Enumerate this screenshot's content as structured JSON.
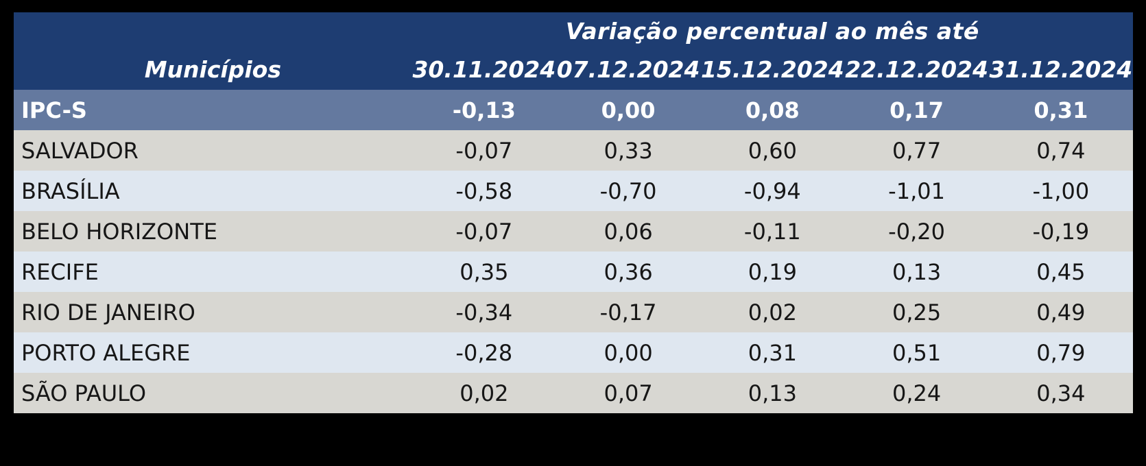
{
  "table": {
    "group_header": "Variação percentual ao mês até",
    "municipality_header": "Municípios",
    "date_columns": [
      "30.11.2024",
      "07.12.2024",
      "15.12.2024",
      "22.12.2024",
      "31.12.2024"
    ],
    "summary_row": {
      "label": "IPC-S",
      "values": [
        "-0,13",
        "0,00",
        "0,08",
        "0,17",
        "0,31"
      ]
    },
    "rows": [
      {
        "label": "SALVADOR",
        "values": [
          "-0,07",
          "0,33",
          "0,60",
          "0,77",
          "0,74"
        ]
      },
      {
        "label": "BRASÍLIA",
        "values": [
          "-0,58",
          "-0,70",
          "-0,94",
          "-1,01",
          "-1,00"
        ]
      },
      {
        "label": "BELO HORIZONTE",
        "values": [
          "-0,07",
          "0,06",
          "-0,11",
          "-0,20",
          "-0,19"
        ]
      },
      {
        "label": "RECIFE",
        "values": [
          "0,35",
          "0,36",
          "0,19",
          "0,13",
          "0,45"
        ]
      },
      {
        "label": "RIO DE JANEIRO",
        "values": [
          "-0,34",
          "-0,17",
          "0,02",
          "0,25",
          "0,49"
        ]
      },
      {
        "label": "PORTO ALEGRE",
        "values": [
          "-0,28",
          "0,00",
          "0,31",
          "0,51",
          "0,79"
        ]
      },
      {
        "label": "SÃO PAULO",
        "values": [
          "0,02",
          "0,07",
          "0,13",
          "0,24",
          "0,34"
        ]
      }
    ],
    "colors": {
      "page_background": "#000000",
      "header_navy": "#1e3d72",
      "summary_row_blue": "#64799f",
      "row_gray": "#d8d7d2",
      "row_light_blue": "#dfe7f0",
      "header_text": "#ffffff",
      "body_text": "#161616"
    }
  },
  "chart_data": {
    "type": "table",
    "title": "Variação percentual ao mês até",
    "row_header_label": "Municípios",
    "categories": [
      "30.11.2024",
      "07.12.2024",
      "15.12.2024",
      "22.12.2024",
      "31.12.2024"
    ],
    "series": [
      {
        "name": "IPC-S",
        "values": [
          -0.13,
          0.0,
          0.08,
          0.17,
          0.31
        ]
      },
      {
        "name": "SALVADOR",
        "values": [
          -0.07,
          0.33,
          0.6,
          0.77,
          0.74
        ]
      },
      {
        "name": "BRASÍLIA",
        "values": [
          -0.58,
          -0.7,
          -0.94,
          -1.01,
          -1.0
        ]
      },
      {
        "name": "BELO HORIZONTE",
        "values": [
          -0.07,
          0.06,
          -0.11,
          -0.2,
          -0.19
        ]
      },
      {
        "name": "RECIFE",
        "values": [
          0.35,
          0.36,
          0.19,
          0.13,
          0.45
        ]
      },
      {
        "name": "RIO DE JANEIRO",
        "values": [
          -0.34,
          -0.17,
          0.02,
          0.25,
          0.49
        ]
      },
      {
        "name": "PORTO ALEGRE",
        "values": [
          -0.28,
          0.0,
          0.31,
          0.51,
          0.79
        ]
      },
      {
        "name": "SÃO PAULO",
        "values": [
          0.02,
          0.07,
          0.13,
          0.24,
          0.34
        ]
      }
    ],
    "value_format": "comma-decimal, 2 places",
    "layout": "summary row (IPC-S) highlighted slate blue with white bold text; city rows alternate warm gray and light blue; dark navy two-line header with bold italic white text"
  }
}
